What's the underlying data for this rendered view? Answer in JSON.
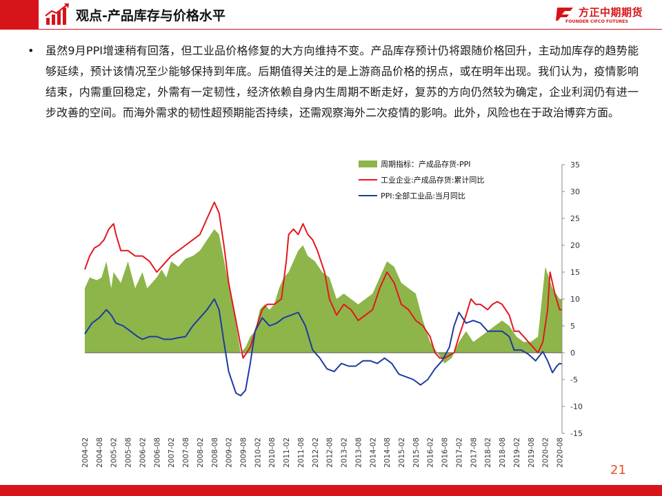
{
  "header": {
    "title": "观点-产品库存与价格水平",
    "logo_text": "方正中期期货",
    "logo_subtext": "FOUNDER CIFCO FUTURES",
    "brand_color": "#d7141a"
  },
  "content": {
    "bullet": "•",
    "text": "虽然9月PPI增速稍有回落，但工业品价格修复的大方向维持不变。产品库存预计仍将跟随价格回升，主动加库存的趋势能够延续，预计该情况至少能够保持到年底。后期值得关注的是上游商品价格的拐点，或在明年出现。我们认为，疫情影响结束，内需重回稳定，外需有一定韧性，经济依赖自身内生周期不断走好，复苏的方向仍然较为确定，企业利润仍有进一步改善的空间。而海外需求的韧性超预期能否持续，还需观察海外二次疫情的影响。此外，风险也在于政治博弈方面。"
  },
  "page_number": "21",
  "chart_data": {
    "type": "line",
    "title": "",
    "xlabel": "",
    "ylabel": "",
    "ylim": [
      -15,
      35
    ],
    "yticks": [
      -15,
      -10,
      -5,
      0,
      5,
      10,
      15,
      20,
      25,
      30,
      35
    ],
    "y_axis_side": "right",
    "grid": false,
    "legend_position": "top",
    "x_start": "2004-02",
    "x_end": "2020-09",
    "x_ticks": [
      "2004-02",
      "2004-08",
      "2005-02",
      "2005-08",
      "2006-02",
      "2006-08",
      "2007-02",
      "2007-08",
      "2008-02",
      "2008-08",
      "2009-02",
      "2009-08",
      "2010-02",
      "2010-08",
      "2011-02",
      "2011-08",
      "2012-02",
      "2012-08",
      "2013-02",
      "2013-08",
      "2014-02",
      "2014-08",
      "2015-02",
      "2015-08",
      "2016-02",
      "2016-08",
      "2017-02",
      "2017-08",
      "2018-02",
      "2018-08",
      "2019-02",
      "2019-08",
      "2020-02",
      "2020-08"
    ],
    "series": [
      {
        "name": "周期指标：产成品存货-PPI",
        "type": "area",
        "color": "#8db54a",
        "points": [
          [
            "2004-02",
            12
          ],
          [
            "2004-04",
            14
          ],
          [
            "2004-07",
            13.5
          ],
          [
            "2004-09",
            14
          ],
          [
            "2004-11",
            17
          ],
          [
            "2005-01",
            12
          ],
          [
            "2005-02",
            15
          ],
          [
            "2005-05",
            13
          ],
          [
            "2005-08",
            17
          ],
          [
            "2005-11",
            12
          ],
          [
            "2006-02",
            15
          ],
          [
            "2006-04",
            12
          ],
          [
            "2006-08",
            14
          ],
          [
            "2006-10",
            15.5
          ],
          [
            "2006-12",
            14
          ],
          [
            "2007-02",
            17
          ],
          [
            "2007-05",
            16
          ],
          [
            "2007-08",
            17.5
          ],
          [
            "2007-11",
            18
          ],
          [
            "2008-02",
            19
          ],
          [
            "2008-05",
            21
          ],
          [
            "2008-08",
            23
          ],
          [
            "2008-10",
            22
          ],
          [
            "2009-01",
            15
          ],
          [
            "2009-04",
            8
          ],
          [
            "2009-07",
            0
          ],
          [
            "2009-09",
            1
          ],
          [
            "2009-11",
            3
          ],
          [
            "2010-01",
            4
          ],
          [
            "2010-03",
            8
          ],
          [
            "2010-05",
            9
          ],
          [
            "2010-07",
            8
          ],
          [
            "2010-09",
            9
          ],
          [
            "2010-11",
            12
          ],
          [
            "2011-01",
            14
          ],
          [
            "2011-03",
            15
          ],
          [
            "2011-05",
            17
          ],
          [
            "2011-07",
            19
          ],
          [
            "2011-09",
            20
          ],
          [
            "2011-11",
            18
          ],
          [
            "2012-02",
            17
          ],
          [
            "2012-05",
            15
          ],
          [
            "2012-08",
            14
          ],
          [
            "2012-11",
            10
          ],
          [
            "2013-02",
            11
          ],
          [
            "2013-05",
            10
          ],
          [
            "2013-08",
            9
          ],
          [
            "2013-11",
            10
          ],
          [
            "2014-02",
            11
          ],
          [
            "2014-05",
            14
          ],
          [
            "2014-08",
            17
          ],
          [
            "2014-11",
            16
          ],
          [
            "2015-02",
            13
          ],
          [
            "2015-05",
            12
          ],
          [
            "2015-08",
            11
          ],
          [
            "2015-11",
            6
          ],
          [
            "2016-02",
            2
          ],
          [
            "2016-05",
            0
          ],
          [
            "2016-08",
            -2
          ],
          [
            "2016-11",
            -1
          ],
          [
            "2017-02",
            2
          ],
          [
            "2017-05",
            4
          ],
          [
            "2017-08",
            2
          ],
          [
            "2017-11",
            3
          ],
          [
            "2018-02",
            4
          ],
          [
            "2018-05",
            5
          ],
          [
            "2018-08",
            6
          ],
          [
            "2018-11",
            5
          ],
          [
            "2019-02",
            3
          ],
          [
            "2019-05",
            2
          ],
          [
            "2019-08",
            2
          ],
          [
            "2019-11",
            3
          ],
          [
            "2020-02",
            16
          ],
          [
            "2020-05",
            12
          ],
          [
            "2020-08",
            10
          ],
          [
            "2020-09",
            10
          ]
        ]
      },
      {
        "name": "工业企业:产成品存货:累计同比",
        "type": "line",
        "color": "#e3161d",
        "points": [
          [
            "2004-02",
            15.5
          ],
          [
            "2004-04",
            18
          ],
          [
            "2004-06",
            19.5
          ],
          [
            "2004-08",
            20
          ],
          [
            "2004-10",
            21
          ],
          [
            "2004-12",
            23
          ],
          [
            "2005-02",
            24
          ],
          [
            "2005-03",
            22
          ],
          [
            "2005-05",
            19
          ],
          [
            "2005-08",
            19
          ],
          [
            "2005-11",
            18
          ],
          [
            "2006-02",
            18
          ],
          [
            "2006-05",
            17
          ],
          [
            "2006-08",
            15
          ],
          [
            "2006-10",
            16
          ],
          [
            "2006-12",
            17
          ],
          [
            "2007-02",
            18
          ],
          [
            "2007-05",
            19
          ],
          [
            "2007-08",
            20
          ],
          [
            "2007-11",
            21
          ],
          [
            "2008-02",
            22
          ],
          [
            "2008-05",
            25
          ],
          [
            "2008-08",
            28
          ],
          [
            "2008-10",
            26
          ],
          [
            "2008-12",
            20
          ],
          [
            "2009-02",
            13
          ],
          [
            "2009-05",
            6
          ],
          [
            "2009-08",
            -1
          ],
          [
            "2009-11",
            1
          ],
          [
            "2010-01",
            4
          ],
          [
            "2010-04",
            8
          ],
          [
            "2010-06",
            9
          ],
          [
            "2010-09",
            9
          ],
          [
            "2010-12",
            10
          ],
          [
            "2011-02",
            17
          ],
          [
            "2011-03",
            22
          ],
          [
            "2011-05",
            23
          ],
          [
            "2011-07",
            22
          ],
          [
            "2011-09",
            24
          ],
          [
            "2011-11",
            22
          ],
          [
            "2012-01",
            21
          ],
          [
            "2012-03",
            19
          ],
          [
            "2012-06",
            15
          ],
          [
            "2012-08",
            10
          ],
          [
            "2012-11",
            7
          ],
          [
            "2013-02",
            9
          ],
          [
            "2013-05",
            8
          ],
          [
            "2013-08",
            6
          ],
          [
            "2013-11",
            7
          ],
          [
            "2014-02",
            8
          ],
          [
            "2014-05",
            12
          ],
          [
            "2014-08",
            15
          ],
          [
            "2014-11",
            13
          ],
          [
            "2015-02",
            9
          ],
          [
            "2015-05",
            8
          ],
          [
            "2015-08",
            6
          ],
          [
            "2015-11",
            5
          ],
          [
            "2016-02",
            3
          ],
          [
            "2016-04",
            0
          ],
          [
            "2016-06",
            -1
          ],
          [
            "2016-08",
            -1
          ],
          [
            "2016-10",
            -0.5
          ],
          [
            "2016-12",
            0
          ],
          [
            "2017-02",
            3
          ],
          [
            "2017-05",
            7
          ],
          [
            "2017-07",
            10
          ],
          [
            "2017-09",
            9
          ],
          [
            "2017-11",
            9
          ],
          [
            "2018-02",
            8
          ],
          [
            "2018-04",
            9
          ],
          [
            "2018-06",
            9.5
          ],
          [
            "2018-08",
            9
          ],
          [
            "2018-11",
            7
          ],
          [
            "2019-01",
            4
          ],
          [
            "2019-03",
            4
          ],
          [
            "2019-05",
            3
          ],
          [
            "2019-07",
            2
          ],
          [
            "2019-09",
            1
          ],
          [
            "2019-11",
            0
          ],
          [
            "2020-01",
            2
          ],
          [
            "2020-03",
            8
          ],
          [
            "2020-04",
            15
          ],
          [
            "2020-06",
            11
          ],
          [
            "2020-08",
            8
          ],
          [
            "2020-09",
            8
          ]
        ]
      },
      {
        "name": "PPI:全部工业品:当月同比",
        "type": "line",
        "color": "#1c3aa0",
        "points": [
          [
            "2004-02",
            3.5
          ],
          [
            "2004-05",
            5.5
          ],
          [
            "2004-08",
            6.5
          ],
          [
            "2004-11",
            8
          ],
          [
            "2005-01",
            7
          ],
          [
            "2005-03",
            5.5
          ],
          [
            "2005-06",
            5
          ],
          [
            "2005-09",
            4
          ],
          [
            "2005-12",
            3
          ],
          [
            "2006-02",
            2.5
          ],
          [
            "2006-05",
            3
          ],
          [
            "2006-08",
            3
          ],
          [
            "2006-11",
            2.5
          ],
          [
            "2007-02",
            2.5
          ],
          [
            "2007-05",
            2.8
          ],
          [
            "2007-08",
            3
          ],
          [
            "2007-11",
            5
          ],
          [
            "2008-02",
            6.5
          ],
          [
            "2008-05",
            8
          ],
          [
            "2008-08",
            10
          ],
          [
            "2008-10",
            8
          ],
          [
            "2008-12",
            2
          ],
          [
            "2009-02",
            -3.5
          ],
          [
            "2009-05",
            -7.5
          ],
          [
            "2009-07",
            -8
          ],
          [
            "2009-09",
            -7
          ],
          [
            "2009-11",
            -2
          ],
          [
            "2010-01",
            4
          ],
          [
            "2010-04",
            6.5
          ],
          [
            "2010-07",
            5
          ],
          [
            "2010-10",
            5.5
          ],
          [
            "2011-01",
            6.5
          ],
          [
            "2011-04",
            7
          ],
          [
            "2011-07",
            7.5
          ],
          [
            "2011-10",
            5
          ],
          [
            "2012-01",
            0.5
          ],
          [
            "2012-04",
            -1
          ],
          [
            "2012-07",
            -3
          ],
          [
            "2012-10",
            -3.5
          ],
          [
            "2013-01",
            -2
          ],
          [
            "2013-04",
            -2.5
          ],
          [
            "2013-07",
            -2.5
          ],
          [
            "2013-10",
            -1.5
          ],
          [
            "2014-01",
            -1.5
          ],
          [
            "2014-04",
            -2
          ],
          [
            "2014-07",
            -1
          ],
          [
            "2014-10",
            -2
          ],
          [
            "2015-01",
            -4
          ],
          [
            "2015-04",
            -4.5
          ],
          [
            "2015-07",
            -5
          ],
          [
            "2015-10",
            -6
          ],
          [
            "2016-01",
            -5
          ],
          [
            "2016-04",
            -3
          ],
          [
            "2016-07",
            -1.5
          ],
          [
            "2016-10",
            1
          ],
          [
            "2016-12",
            5
          ],
          [
            "2017-02",
            7.5
          ],
          [
            "2017-05",
            5.5
          ],
          [
            "2017-08",
            6
          ],
          [
            "2017-11",
            5.5
          ],
          [
            "2018-02",
            4
          ],
          [
            "2018-05",
            4
          ],
          [
            "2018-08",
            4
          ],
          [
            "2018-11",
            3
          ],
          [
            "2019-01",
            0.5
          ],
          [
            "2019-04",
            0.5
          ],
          [
            "2019-07",
            -0.3
          ],
          [
            "2019-10",
            -1.5
          ],
          [
            "2020-01",
            0.2
          ],
          [
            "2020-03",
            -1.5
          ],
          [
            "2020-05",
            -3.7
          ],
          [
            "2020-07",
            -2.4
          ],
          [
            "2020-08",
            -2
          ],
          [
            "2020-09",
            -2.1
          ]
        ]
      }
    ]
  }
}
